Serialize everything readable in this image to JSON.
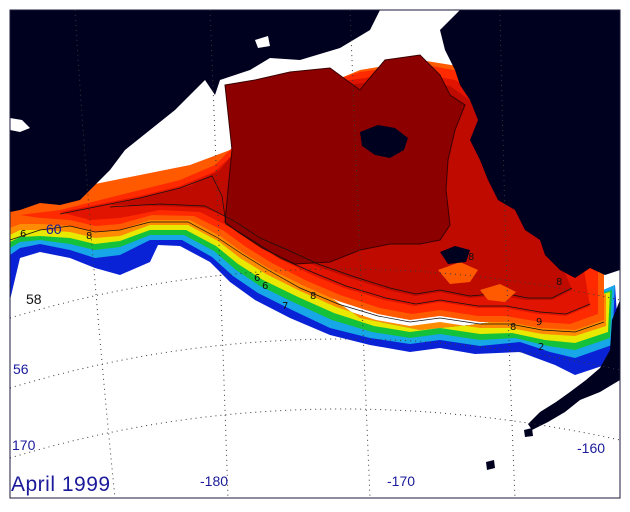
{
  "title": "April 1999",
  "colors": {
    "land": "#00001f",
    "ice": "#ffffff",
    "frame": "#1a1a3a",
    "graticule": "#3a3a3a",
    "label": "#1a1a9a",
    "contour_line": "#111111",
    "bands": [
      "#0a22d6",
      "#17a6e8",
      "#13c23a",
      "#e8e800",
      "#ff8c00",
      "#ff5a00",
      "#ff2a00",
      "#e01400",
      "#bf0a00",
      "#8c0000"
    ]
  },
  "latitude_labels": [
    "60",
    "58",
    "56"
  ],
  "longitude_labels": [
    "170",
    "-180",
    "-170",
    "-160"
  ],
  "contour_labels": [
    "6",
    "8",
    "6",
    "6",
    "7",
    "8",
    "8",
    "8",
    "9",
    "8",
    "2"
  ]
}
